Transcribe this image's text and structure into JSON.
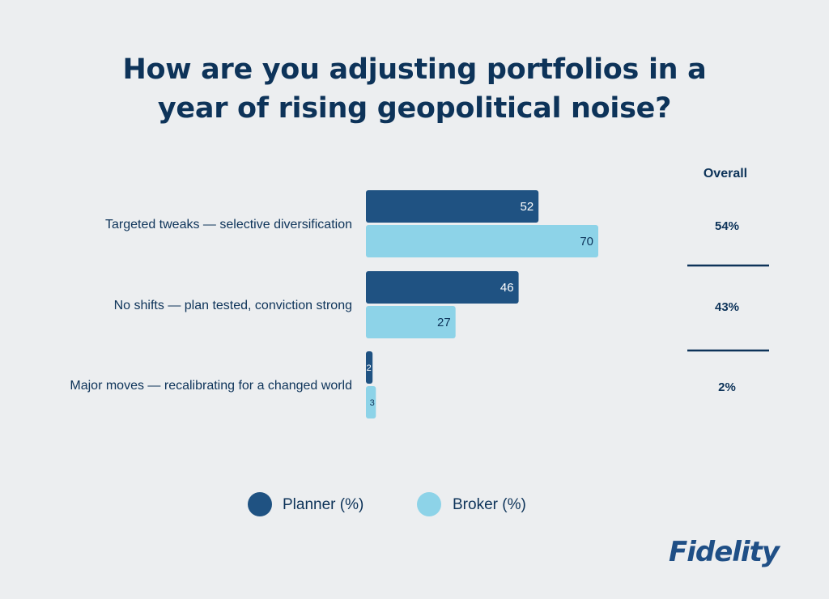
{
  "title_lines": [
    "How are you adjusting portfolios in a",
    "year of rising geopolitical noise?"
  ],
  "colors": {
    "planner": "#1f5282",
    "broker": "#8dd3e8",
    "text": "#0d3359",
    "background": "#eceef0"
  },
  "chart_data": {
    "type": "bar",
    "orientation": "horizontal",
    "title": "How are you adjusting portfolios in a year of rising geopolitical noise?",
    "categories": [
      "Targeted tweaks — selective diversification",
      "No shifts — plan tested, conviction strong",
      "Major moves — recalibrating for a changed world"
    ],
    "series": [
      {
        "name": "Planner (%)",
        "values": [
          52,
          46,
          2
        ]
      },
      {
        "name": "Broker (%)",
        "values": [
          70,
          27,
          3
        ]
      }
    ],
    "overall_header": "Overall",
    "overall": [
      "54%",
      "43%",
      "2%"
    ],
    "xlim": [
      0,
      70
    ],
    "grid": false,
    "legend_position": "bottom"
  },
  "logo_text": "Fidelity"
}
